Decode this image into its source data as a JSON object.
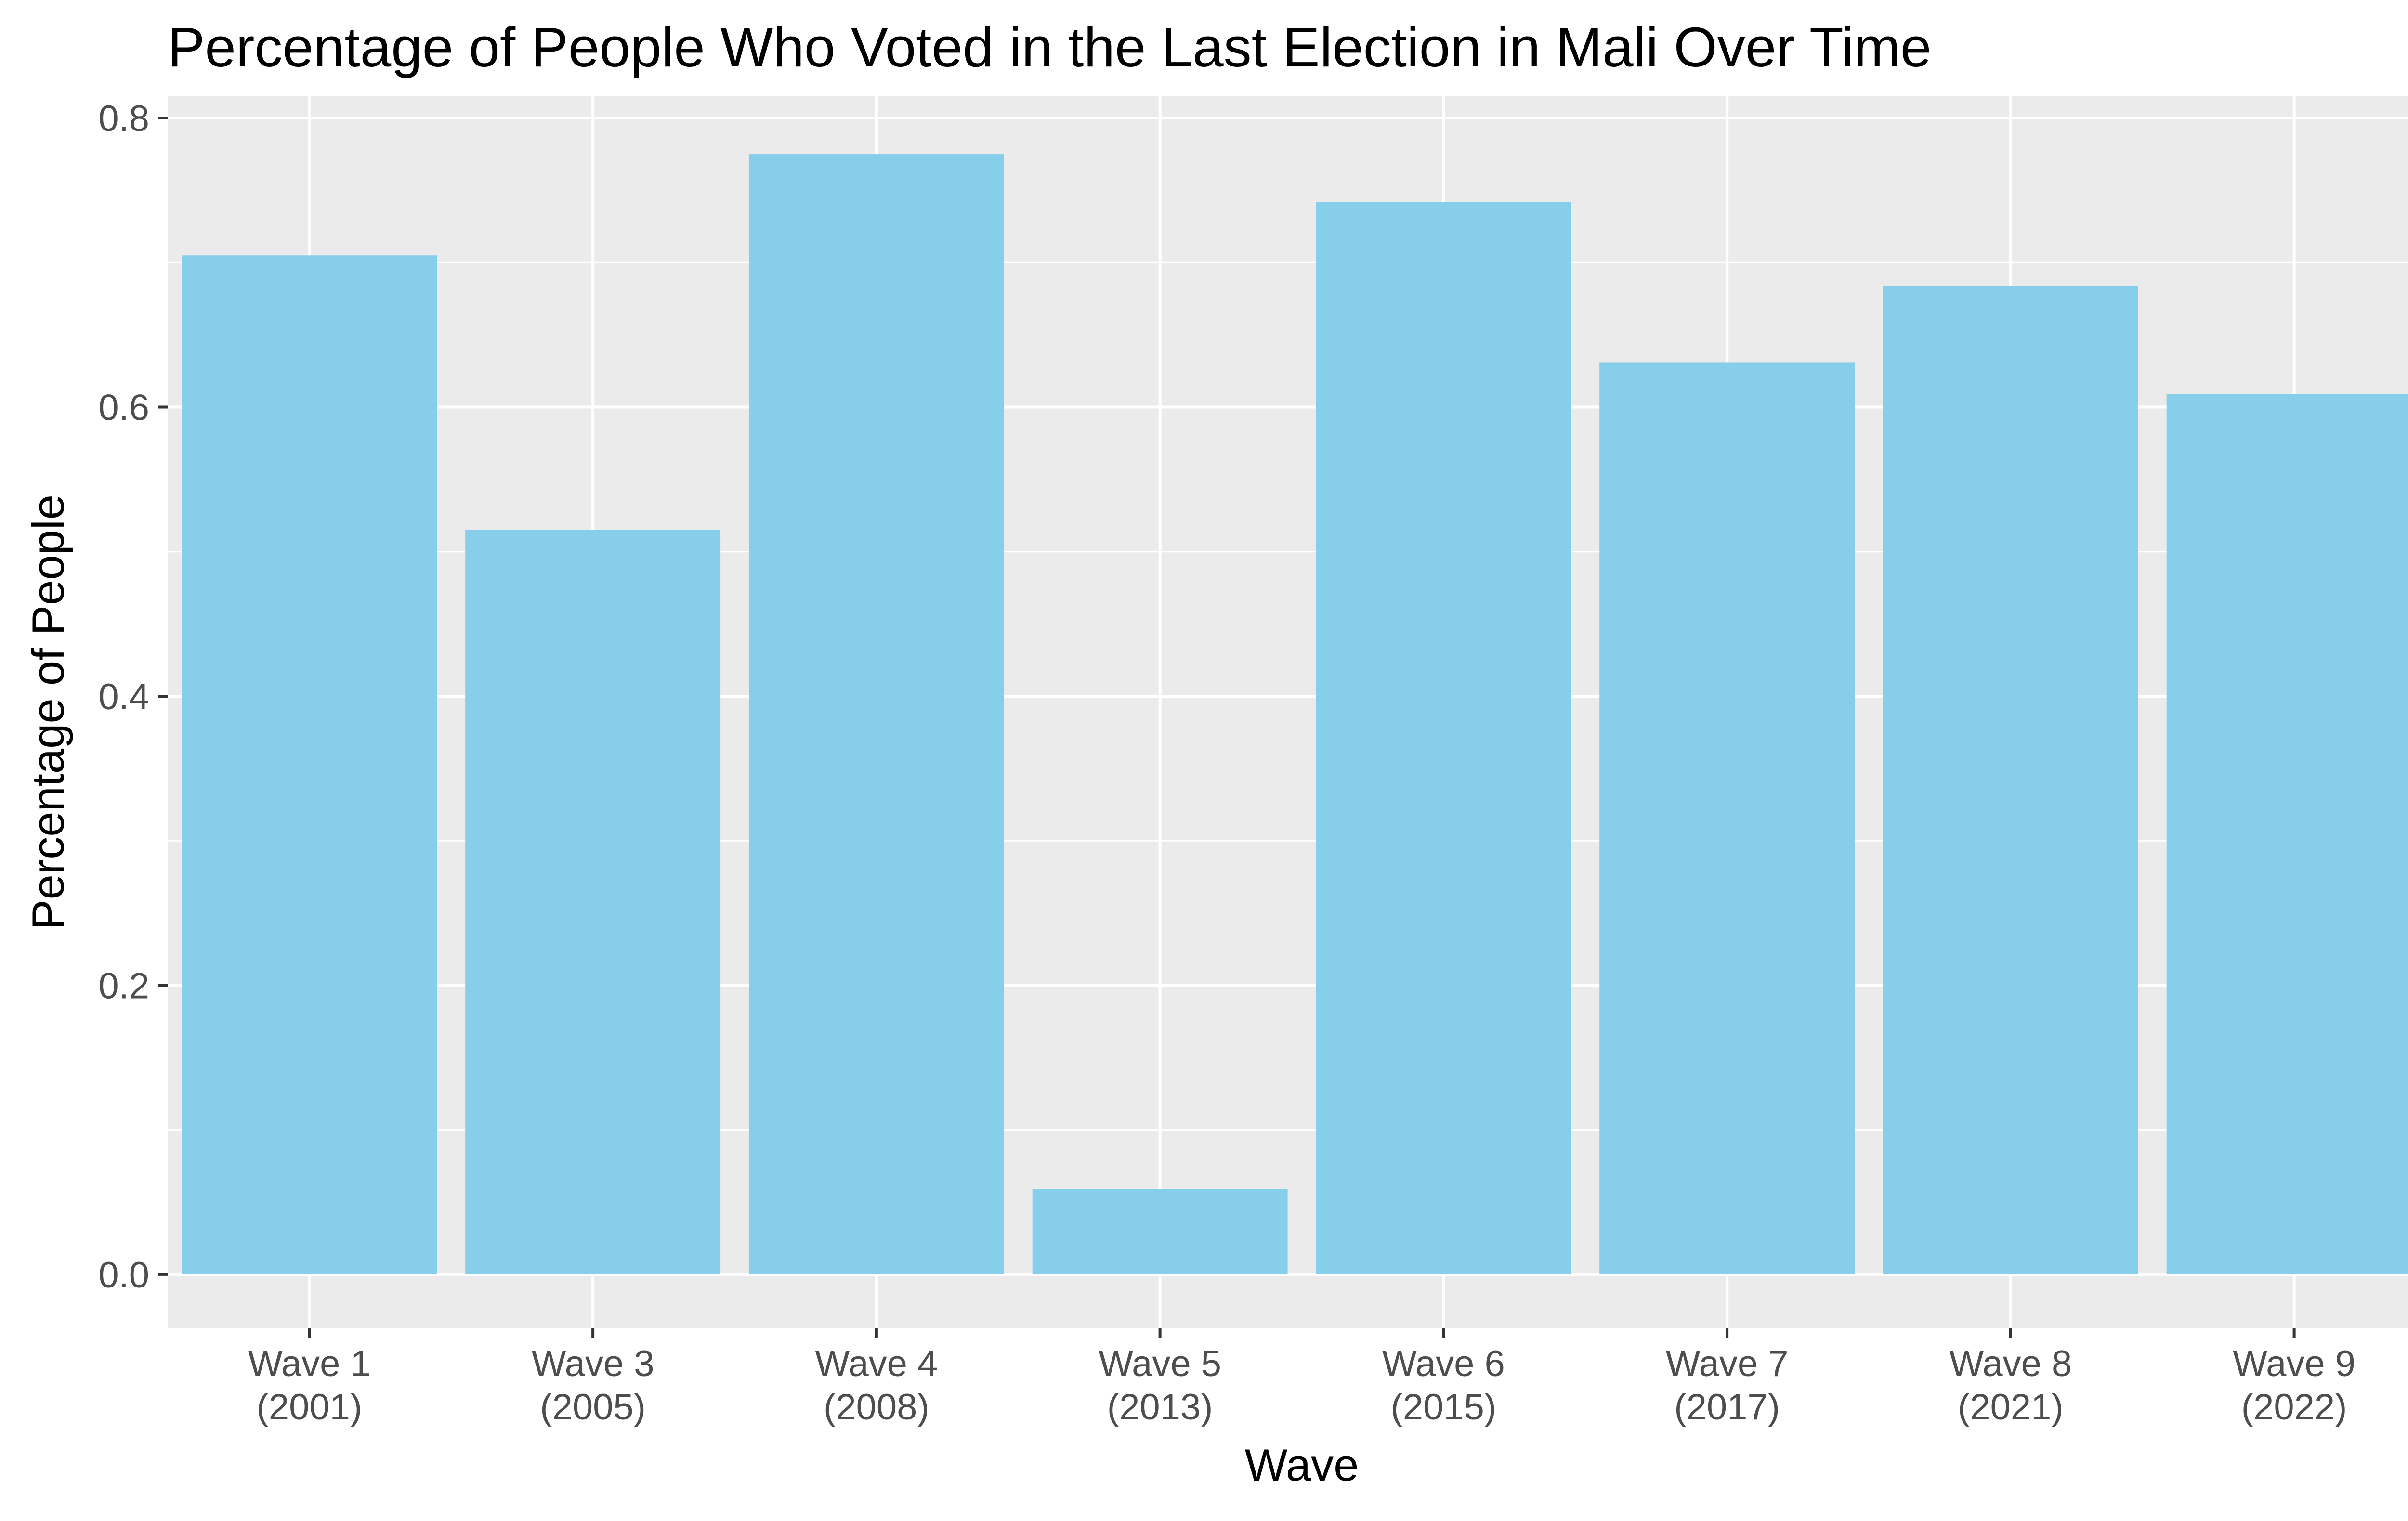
{
  "chart_data": {
    "type": "bar",
    "title": "Percentage of People Who Voted in the Last Election in Mali Over Time",
    "xlabel": "Wave",
    "ylabel": "Percentage of People",
    "categories": [
      [
        "Wave 1",
        "(2001)"
      ],
      [
        "Wave 3",
        "(2005)"
      ],
      [
        "Wave 4",
        "(2008)"
      ],
      [
        "Wave 5",
        "(2013)"
      ],
      [
        "Wave 6",
        "(2015)"
      ],
      [
        "Wave 7",
        "(2017)"
      ],
      [
        "Wave 8",
        "(2021)"
      ],
      [
        "Wave 9",
        "(2022)"
      ]
    ],
    "values": [
      0.705,
      0.515,
      0.775,
      0.059,
      0.742,
      0.631,
      0.684,
      0.609
    ],
    "ylim": [
      -0.037,
      0.815
    ],
    "yticks": [
      0.0,
      0.2,
      0.4,
      0.6,
      0.8
    ],
    "ytick_labels": [
      "0.0",
      "0.2",
      "0.4",
      "0.6",
      "0.8"
    ],
    "grid": true,
    "colors": {
      "bar": "#87CEEB",
      "panel": "#EBEBEB",
      "gridline": "#FFFFFF",
      "tick": "#333333"
    }
  }
}
